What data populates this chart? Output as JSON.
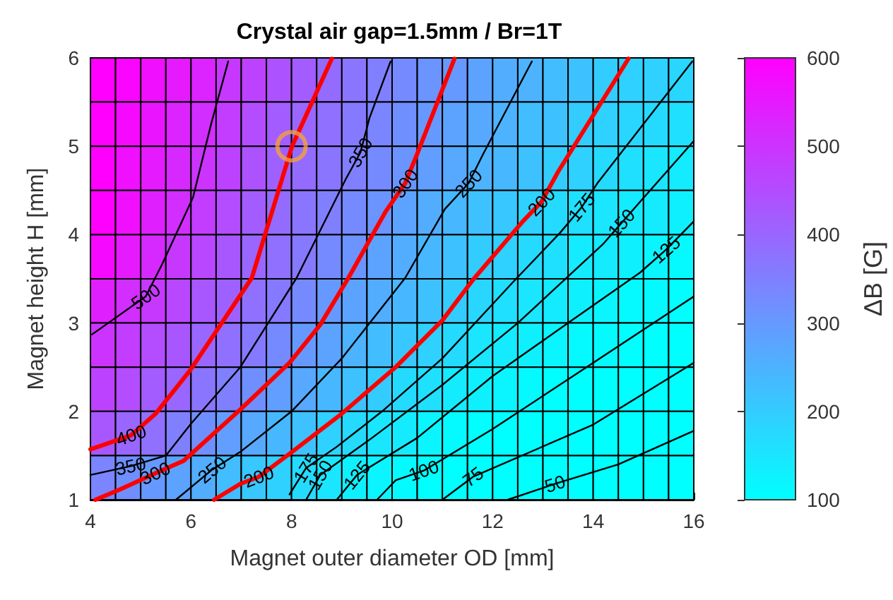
{
  "chart_data": {
    "type": "heatmap",
    "title": "Crystal air gap=1.5mm / Br=1T",
    "xlabel": "Magnet outer diameter OD [mm]",
    "ylabel": "Magnet height H [mm]",
    "clabel": "ΔB [G]",
    "xlim": [
      4,
      16
    ],
    "xticks": [
      4,
      6,
      8,
      10,
      12,
      14,
      16
    ],
    "ylim": [
      1,
      6
    ],
    "yticks": [
      1,
      2,
      3,
      4,
      5,
      6
    ],
    "clim": [
      100,
      600
    ],
    "cticks": [
      100,
      200,
      300,
      400,
      500,
      600
    ],
    "cells": [
      [
        600,
        590,
        570,
        550,
        530,
        490,
        470,
        440,
        420,
        390,
        370,
        350,
        330,
        310,
        300,
        280,
        260,
        250,
        230,
        220,
        200,
        190,
        190,
        180
      ],
      [
        600,
        580,
        560,
        530,
        510,
        480,
        450,
        420,
        400,
        380,
        360,
        340,
        320,
        300,
        280,
        270,
        250,
        230,
        220,
        200,
        190,
        180,
        170,
        160
      ],
      [
        600,
        570,
        550,
        520,
        500,
        470,
        440,
        410,
        390,
        370,
        350,
        330,
        310,
        290,
        270,
        250,
        240,
        220,
        200,
        190,
        170,
        160,
        150,
        140
      ],
      [
        600,
        570,
        540,
        510,
        480,
        450,
        420,
        390,
        370,
        350,
        330,
        310,
        280,
        260,
        240,
        220,
        210,
        190,
        170,
        160,
        150,
        140,
        140,
        130
      ],
      [
        580,
        550,
        520,
        490,
        460,
        430,
        400,
        380,
        360,
        330,
        310,
        280,
        260,
        240,
        220,
        200,
        190,
        170,
        160,
        140,
        140,
        130,
        120,
        110
      ],
      [
        540,
        510,
        490,
        460,
        430,
        410,
        380,
        360,
        330,
        300,
        280,
        260,
        240,
        220,
        200,
        180,
        160,
        150,
        140,
        130,
        120,
        110,
        110,
        100
      ],
      [
        500,
        480,
        450,
        430,
        400,
        380,
        360,
        330,
        300,
        280,
        250,
        230,
        210,
        190,
        170,
        150,
        140,
        130,
        120,
        110,
        110,
        100,
        90,
        80
      ],
      [
        470,
        450,
        420,
        400,
        370,
        350,
        320,
        290,
        270,
        240,
        220,
        200,
        170,
        160,
        140,
        130,
        120,
        110,
        100,
        90,
        80,
        80,
        70,
        60
      ],
      [
        430,
        400,
        380,
        350,
        320,
        290,
        270,
        240,
        220,
        190,
        170,
        150,
        140,
        120,
        110,
        100,
        90,
        80,
        80,
        70,
        70,
        60,
        60,
        50
      ],
      [
        340,
        320,
        300,
        280,
        260,
        230,
        210,
        190,
        170,
        150,
        130,
        120,
        110,
        100,
        80,
        70,
        70,
        60,
        50,
        50,
        40,
        40,
        40,
        40
      ]
    ],
    "series": [
      {
        "type": "line",
        "color": "#000000",
        "x": [
          4.03,
          5.1,
          5.43,
          6.04,
          6.4,
          6.74
        ],
        "values": [
          2.87,
          3.3,
          3.67,
          4.42,
          5.25,
          5.96
        ]
      },
      {
        "type": "line",
        "color": "#ff0000",
        "x": [
          4,
          4.81,
          5.29,
          5.99,
          7.21,
          8.01,
          8.8
        ],
        "values": [
          1.57,
          1.73,
          1.97,
          2.47,
          3.51,
          5.0,
          5.99
        ]
      },
      {
        "type": "line",
        "color": "#000000",
        "x": [
          4,
          4.8,
          5.5,
          6.0,
          6.98,
          8.1,
          9.08,
          9.37,
          9.55,
          9.97
        ],
        "values": [
          1.28,
          1.38,
          1.5,
          1.86,
          2.5,
          3.51,
          4.63,
          4.93,
          5.32,
          5.96
        ]
      },
      {
        "type": "line",
        "color": "#ff0000",
        "x": [
          4.1,
          4.6,
          5.29,
          5.85,
          6.98,
          7.96,
          8.57,
          9.13,
          9.87,
          10.26,
          10.49,
          11.24
        ],
        "values": [
          1.0,
          1.12,
          1.3,
          1.44,
          2.02,
          2.55,
          2.98,
          3.51,
          4.26,
          4.58,
          4.9,
          5.99
        ]
      },
      {
        "type": "line",
        "color": "#000000",
        "x": [
          5.7,
          6.42,
          7.0,
          8.0,
          9.0,
          10.26,
          11.05,
          11.52,
          11.8,
          12.78
        ],
        "values": [
          1.0,
          1.34,
          1.55,
          2.0,
          2.6,
          3.51,
          4.29,
          4.58,
          4.9,
          5.96
        ]
      },
      {
        "type": "line",
        "color": "#ff0000",
        "x": [
          6.46,
          6.98,
          7.35,
          7.96,
          8.99,
          10.07,
          11.0,
          11.61,
          12.6,
          12.97,
          13.3,
          14.7
        ],
        "values": [
          1.0,
          1.18,
          1.26,
          1.52,
          1.97,
          2.5,
          3.03,
          3.49,
          4.15,
          4.37,
          4.71,
          5.99
        ]
      },
      {
        "type": "line",
        "color": "#000000",
        "x": [
          7.96,
          8.29,
          8.9,
          9.8,
          11.0,
          12.4,
          13.34,
          13.77,
          14.08,
          15.97
        ],
        "values": [
          1.06,
          1.36,
          1.6,
          2.0,
          2.6,
          3.46,
          4.02,
          4.31,
          4.58,
          5.96
        ]
      },
      {
        "type": "line",
        "color": "#000000",
        "x": [
          8.29,
          8.57,
          9.6,
          11.0,
          12.5,
          14.19,
          14.56,
          14.93,
          16
        ],
        "values": [
          1.0,
          1.28,
          1.7,
          2.3,
          3.0,
          3.89,
          4.13,
          4.37,
          5.06
        ]
      },
      {
        "type": "line",
        "color": "#000000",
        "x": [
          8.9,
          9.3,
          10.5,
          12.0,
          13.5,
          14.93,
          15.45,
          16
        ],
        "values": [
          1.0,
          1.28,
          1.7,
          2.4,
          3.0,
          3.57,
          3.83,
          4.15
        ]
      },
      {
        "type": "line",
        "color": "#000000",
        "x": [
          9.7,
          10.07,
          10.63,
          12,
          14.0,
          16
        ],
        "values": [
          1.0,
          1.22,
          1.33,
          1.8,
          2.55,
          3.3
        ]
      },
      {
        "type": "line",
        "color": "#000000",
        "x": [
          11.0,
          11.61,
          14.0,
          16
        ],
        "values": [
          1.0,
          1.26,
          1.85,
          2.55
        ]
      },
      {
        "type": "line",
        "color": "#000000",
        "x": [
          12.3,
          13.24,
          14.5,
          16
        ],
        "values": [
          1.0,
          1.18,
          1.4,
          1.78
        ]
      },
      {
        "type": "scatter",
        "marker": "circle",
        "color": "#f5a03c",
        "x": [
          8
        ],
        "values": [
          5
        ]
      }
    ],
    "annotations": [
      {
        "text": "500",
        "x": 5.1,
        "y": 3.3
      },
      {
        "text": "400",
        "x": 4.81,
        "y": 1.73
      },
      {
        "text": "350",
        "x": 4.8,
        "y": 1.38
      },
      {
        "text": "300",
        "x": 5.29,
        "y": 1.3
      },
      {
        "text": "250",
        "x": 6.42,
        "y": 1.34
      },
      {
        "text": "200",
        "x": 7.35,
        "y": 1.26
      },
      {
        "text": "175",
        "x": 8.29,
        "y": 1.36
      },
      {
        "text": "150",
        "x": 8.57,
        "y": 1.28
      },
      {
        "text": "125",
        "x": 9.3,
        "y": 1.28
      },
      {
        "text": "100",
        "x": 10.63,
        "y": 1.33
      },
      {
        "text": "75",
        "x": 11.61,
        "y": 1.26
      },
      {
        "text": "50",
        "x": 13.24,
        "y": 1.18
      },
      {
        "text": "350",
        "x": 9.37,
        "y": 4.93
      },
      {
        "text": "300",
        "x": 10.26,
        "y": 4.58
      },
      {
        "text": "250",
        "x": 11.52,
        "y": 4.58
      },
      {
        "text": "200",
        "x": 12.97,
        "y": 4.37
      },
      {
        "text": "175",
        "x": 13.77,
        "y": 4.31
      },
      {
        "text": "150",
        "x": 14.56,
        "y": 4.13
      },
      {
        "text": "125",
        "x": 15.45,
        "y": 3.83
      }
    ]
  }
}
